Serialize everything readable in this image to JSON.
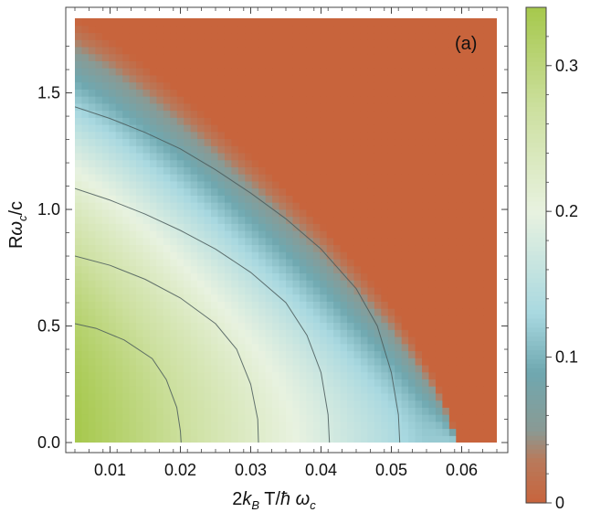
{
  "chart_data": {
    "type": "heatmap",
    "panel_label": "(a)",
    "xlabel": "2k_B T/ħ ω_c",
    "ylabel": "Rω_c/c",
    "xlim": [
      0.005,
      0.065
    ],
    "ylim": [
      0.0,
      1.82
    ],
    "x_ticks": [
      0.01,
      0.02,
      0.03,
      0.04,
      0.05,
      0.06
    ],
    "x_tick_labels": [
      "0.01",
      "0.02",
      "0.03",
      "0.04",
      "0.05",
      "0.06"
    ],
    "y_ticks": [
      0.0,
      0.5,
      1.0,
      1.5
    ],
    "y_tick_labels": [
      "0.0",
      "0.5",
      "1.0",
      "1.5"
    ],
    "colorbar": {
      "range": [
        0,
        0.34
      ],
      "ticks": [
        0,
        0.1,
        0.2,
        0.3
      ],
      "tick_labels": [
        "0",
        "0.1",
        "0.2",
        "0.3"
      ],
      "colors": [
        {
          "v": 0.0,
          "c": "#c8643c"
        },
        {
          "v": 0.03,
          "c": "#b87a5c"
        },
        {
          "v": 0.05,
          "c": "#8a9a94"
        },
        {
          "v": 0.09,
          "c": "#6fa8b0"
        },
        {
          "v": 0.13,
          "c": "#a8d8e0"
        },
        {
          "v": 0.2,
          "c": "#e8f2e0"
        },
        {
          "v": 0.27,
          "c": "#cde0a0"
        },
        {
          "v": 0.34,
          "c": "#a6c84c"
        }
      ]
    },
    "contours": [
      {
        "level": 0.1,
        "points": [
          [
            0.005,
            1.44
          ],
          [
            0.01,
            1.39
          ],
          [
            0.015,
            1.33
          ],
          [
            0.02,
            1.26
          ],
          [
            0.025,
            1.17
          ],
          [
            0.03,
            1.07
          ],
          [
            0.035,
            0.96
          ],
          [
            0.04,
            0.83
          ],
          [
            0.045,
            0.66
          ],
          [
            0.048,
            0.5
          ],
          [
            0.05,
            0.3
          ],
          [
            0.051,
            0.12
          ],
          [
            0.0512,
            0.0
          ]
        ]
      },
      {
        "level": 0.15,
        "points": [
          [
            0.005,
            1.09
          ],
          [
            0.01,
            1.04
          ],
          [
            0.015,
            0.98
          ],
          [
            0.02,
            0.91
          ],
          [
            0.025,
            0.83
          ],
          [
            0.03,
            0.73
          ],
          [
            0.035,
            0.6
          ],
          [
            0.038,
            0.46
          ],
          [
            0.04,
            0.3
          ],
          [
            0.041,
            0.12
          ],
          [
            0.0412,
            0.0
          ]
        ]
      },
      {
        "level": 0.2,
        "points": [
          [
            0.005,
            0.8
          ],
          [
            0.01,
            0.76
          ],
          [
            0.015,
            0.7
          ],
          [
            0.02,
            0.62
          ],
          [
            0.025,
            0.51
          ],
          [
            0.028,
            0.4
          ],
          [
            0.03,
            0.25
          ],
          [
            0.031,
            0.1
          ],
          [
            0.0311,
            0.0
          ]
        ]
      },
      {
        "level": 0.25,
        "points": [
          [
            0.005,
            0.51
          ],
          [
            0.008,
            0.49
          ],
          [
            0.012,
            0.44
          ],
          [
            0.016,
            0.36
          ],
          [
            0.018,
            0.27
          ],
          [
            0.0195,
            0.15
          ],
          [
            0.02,
            0.05
          ],
          [
            0.0201,
            0.0
          ]
        ]
      }
    ],
    "boundary_zero": [
      [
        0.005,
        1.82
      ],
      [
        0.01,
        1.73
      ],
      [
        0.015,
        1.62
      ],
      [
        0.02,
        1.5
      ],
      [
        0.025,
        1.37
      ],
      [
        0.03,
        1.23
      ],
      [
        0.035,
        1.09
      ],
      [
        0.04,
        0.94
      ],
      [
        0.045,
        0.77
      ],
      [
        0.05,
        0.59
      ],
      [
        0.053,
        0.45
      ],
      [
        0.056,
        0.29
      ],
      [
        0.058,
        0.15
      ],
      [
        0.059,
        0.05
      ],
      [
        0.0592,
        0.0
      ]
    ]
  }
}
